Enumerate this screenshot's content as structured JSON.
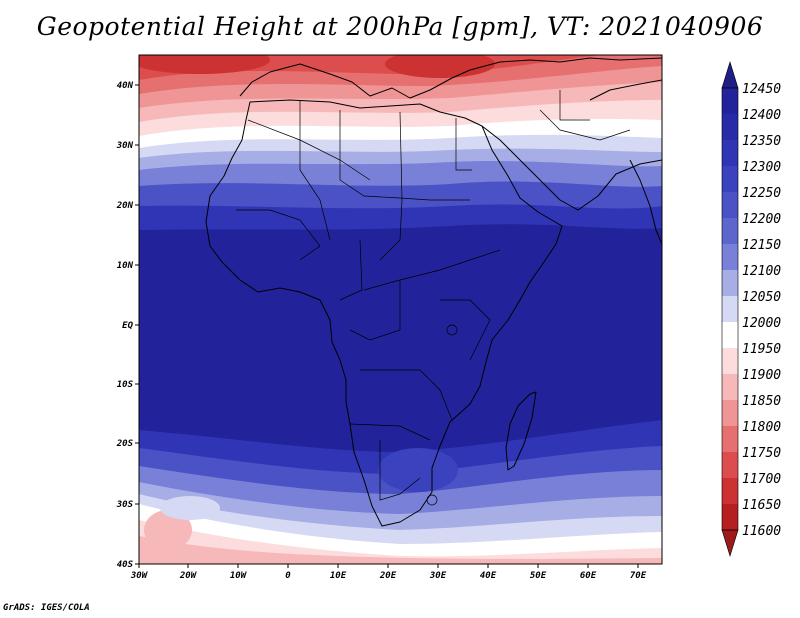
{
  "title": "Geopotential Height at 200hPa [gpm], VT: 2021040906",
  "credit": "GrADS: IGES/COLA",
  "map": {
    "region": "Africa",
    "lon_ticks": [
      "30W",
      "20W",
      "10W",
      "0",
      "10E",
      "20E",
      "30E",
      "40E",
      "50E",
      "60E",
      "70E"
    ],
    "lat_ticks": [
      "40N",
      "30N",
      "20N",
      "10N",
      "EQ",
      "10S",
      "20S",
      "30S",
      "40S"
    ]
  },
  "colorbar": {
    "levels": [
      "12450",
      "12400",
      "12350",
      "12300",
      "12250",
      "12200",
      "12150",
      "12100",
      "12050",
      "12000",
      "11950",
      "11900",
      "11850",
      "11800",
      "11750",
      "11700",
      "11650",
      "11600"
    ],
    "colors": [
      "#1e1e87",
      "#22239a",
      "#272ba8",
      "#2f35b4",
      "#3a42bd",
      "#4a52c5",
      "#5d66cd",
      "#7880d8",
      "#a7aee6",
      "#d6d9f3",
      "#ffffff",
      "#fcdcdc",
      "#f6b8b8",
      "#ef9595",
      "#e67070",
      "#dc4e4e",
      "#cc3232",
      "#b51f1f",
      "#9e1a1a"
    ]
  },
  "chart_data": {
    "type": "heatmap",
    "title": "Geopotential Height at 200hPa [gpm], VT: 2021040906",
    "units": "gpm",
    "x_range": [
      -30,
      75
    ],
    "y_range": [
      -40,
      45
    ],
    "contour_levels": [
      11600,
      11650,
      11700,
      11750,
      11800,
      11850,
      11900,
      11950,
      12000,
      12050,
      12100,
      12150,
      12200,
      12250,
      12300,
      12350,
      12400,
      12450
    ],
    "field_summary": {
      "north_of_35N": "11600-11850 (low heights, red)",
      "near_30N": "about 12000",
      "tropics_20N_to_20S": "12350-12450 (high heights, dark blue)",
      "near_35S": "11950-12100",
      "south_of_38S": "11750-11900"
    }
  }
}
